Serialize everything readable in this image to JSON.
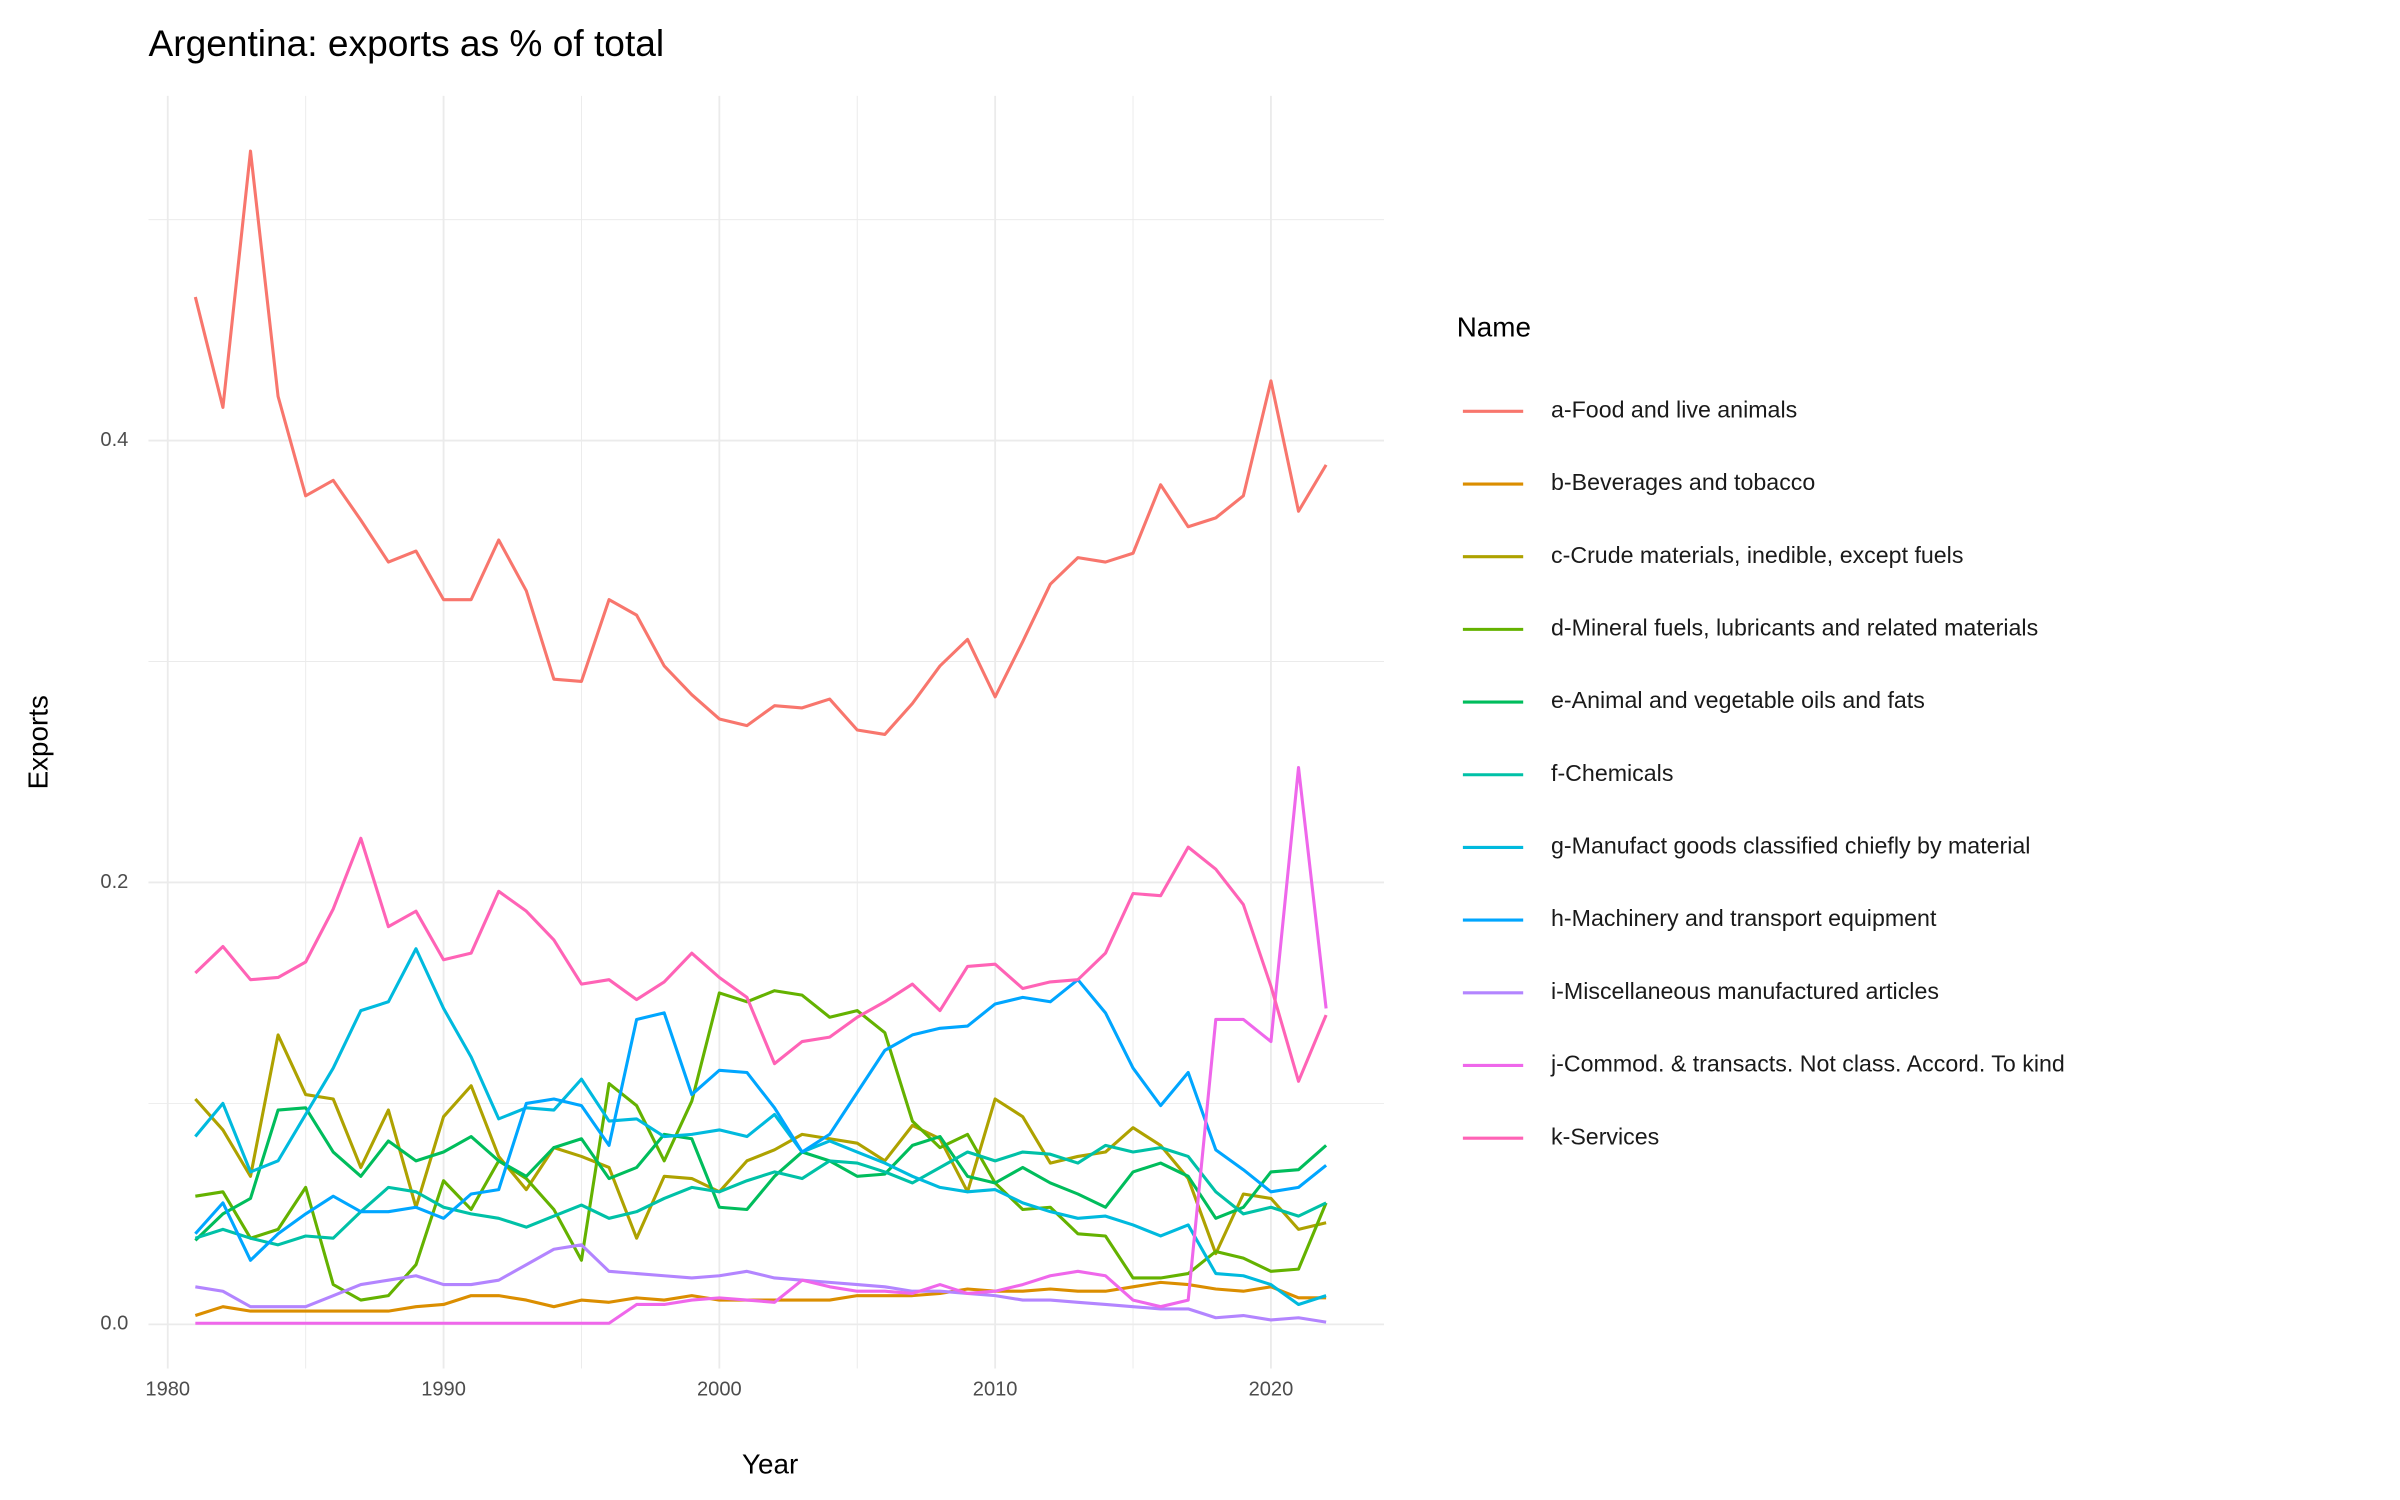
{
  "chart_data": {
    "type": "line",
    "title": "Argentina: exports as % of total",
    "x_label": "Year",
    "y_label": "Exports",
    "legend_title": "Name",
    "legend_position": "right",
    "grid": true,
    "xlim": [
      1979.3,
      2024.1
    ],
    "ylim": [
      -0.02,
      0.556
    ],
    "xticks": [
      1980,
      1990,
      2000,
      2010,
      2020
    ],
    "yticks": [
      {
        "value": 0,
        "label": "0.0"
      },
      {
        "value": 0.2,
        "label": "0.2"
      },
      {
        "value": 0.4,
        "label": "0.4"
      }
    ],
    "x_minor_grid": [
      1985,
      1995,
      2005,
      2015
    ],
    "y_minor_grid": [
      0.1,
      0.3,
      0.5
    ],
    "x": [
      1981,
      1982,
      1983,
      1984,
      1985,
      1986,
      1987,
      1988,
      1989,
      1990,
      1991,
      1992,
      1993,
      1994,
      1995,
      1996,
      1997,
      1998,
      1999,
      2000,
      2001,
      2002,
      2003,
      2004,
      2005,
      2006,
      2007,
      2008,
      2009,
      2010,
      2011,
      2012,
      2013,
      2014,
      2015,
      2016,
      2017,
      2018,
      2019,
      2020,
      2021,
      2022
    ],
    "series": [
      {
        "name": "a-Food and live animals",
        "color": "#F8766D",
        "values": [
          0.465,
          0.415,
          0.531,
          0.42,
          0.375,
          0.382,
          0.364,
          0.345,
          0.35,
          0.328,
          0.328,
          0.355,
          0.332,
          0.292,
          0.291,
          0.328,
          0.321,
          0.298,
          0.285,
          0.274,
          0.271,
          0.28,
          0.279,
          0.283,
          0.269,
          0.267,
          0.281,
          0.298,
          0.31,
          0.284,
          0.309,
          0.335,
          0.347,
          0.345,
          0.349,
          0.38,
          0.361,
          0.365,
          0.375,
          0.427,
          0.368,
          0.389
        ]
      },
      {
        "name": "b-Beverages and tobacco",
        "color": "#DB8E00",
        "values": [
          0.004,
          0.008,
          0.006,
          0.006,
          0.006,
          0.006,
          0.006,
          0.006,
          0.008,
          0.009,
          0.013,
          0.013,
          0.011,
          0.008,
          0.011,
          0.01,
          0.012,
          0.011,
          0.013,
          0.011,
          0.011,
          0.011,
          0.011,
          0.011,
          0.013,
          0.013,
          0.013,
          0.014,
          0.016,
          0.015,
          0.015,
          0.016,
          0.015,
          0.015,
          0.017,
          0.019,
          0.018,
          0.016,
          0.015,
          0.017,
          0.012,
          0.012
        ]
      },
      {
        "name": "c-Crude materials, inedible, except fuels",
        "color": "#AEA200",
        "values": [
          0.102,
          0.088,
          0.067,
          0.131,
          0.104,
          0.102,
          0.071,
          0.097,
          0.053,
          0.094,
          0.108,
          0.076,
          0.061,
          0.08,
          0.076,
          0.071,
          0.039,
          0.067,
          0.066,
          0.06,
          0.074,
          0.079,
          0.086,
          0.084,
          0.082,
          0.074,
          0.09,
          0.084,
          0.06,
          0.102,
          0.094,
          0.073,
          0.076,
          0.078,
          0.089,
          0.081,
          0.066,
          0.032,
          0.059,
          0.057,
          0.043,
          0.046
        ]
      },
      {
        "name": "d-Mineral fuels, lubricants and related materials",
        "color": "#64B200",
        "values": [
          0.058,
          0.06,
          0.039,
          0.043,
          0.062,
          0.018,
          0.011,
          0.013,
          0.027,
          0.065,
          0.052,
          0.074,
          0.066,
          0.052,
          0.029,
          0.109,
          0.099,
          0.074,
          0.101,
          0.15,
          0.146,
          0.151,
          0.149,
          0.139,
          0.142,
          0.132,
          0.092,
          0.08,
          0.086,
          0.064,
          0.052,
          0.053,
          0.041,
          0.04,
          0.021,
          0.021,
          0.023,
          0.033,
          0.03,
          0.024,
          0.025,
          0.055
        ]
      },
      {
        "name": "e-Animal and vegetable oils and fats",
        "color": "#00BD5C",
        "values": [
          0.038,
          0.05,
          0.057,
          0.097,
          0.098,
          0.078,
          0.067,
          0.083,
          0.074,
          0.078,
          0.085,
          0.074,
          0.067,
          0.08,
          0.084,
          0.066,
          0.071,
          0.086,
          0.084,
          0.053,
          0.052,
          0.067,
          0.078,
          0.074,
          0.067,
          0.068,
          0.081,
          0.085,
          0.067,
          0.064,
          0.071,
          0.064,
          0.059,
          0.053,
          0.069,
          0.073,
          0.067,
          0.048,
          0.053,
          0.069,
          0.07,
          0.081
        ]
      },
      {
        "name": "f-Chemicals",
        "color": "#00C1A7",
        "values": [
          0.039,
          0.043,
          0.039,
          0.036,
          0.04,
          0.039,
          0.051,
          0.062,
          0.06,
          0.053,
          0.05,
          0.048,
          0.044,
          0.049,
          0.054,
          0.048,
          0.051,
          0.057,
          0.062,
          0.06,
          0.065,
          0.069,
          0.066,
          0.074,
          0.073,
          0.069,
          0.064,
          0.071,
          0.078,
          0.074,
          0.078,
          0.077,
          0.073,
          0.081,
          0.078,
          0.08,
          0.076,
          0.06,
          0.05,
          0.053,
          0.049,
          0.055
        ]
      },
      {
        "name": "g-Manufact goods classified chiefly by material",
        "color": "#00BADE",
        "values": [
          0.085,
          0.1,
          0.069,
          0.074,
          0.095,
          0.116,
          0.142,
          0.146,
          0.17,
          0.143,
          0.121,
          0.093,
          0.098,
          0.097,
          0.111,
          0.092,
          0.093,
          0.085,
          0.086,
          0.088,
          0.085,
          0.095,
          0.078,
          0.083,
          0.078,
          0.073,
          0.067,
          0.062,
          0.06,
          0.061,
          0.055,
          0.051,
          0.048,
          0.049,
          0.045,
          0.04,
          0.045,
          0.023,
          0.022,
          0.018,
          0.009,
          0.013
        ]
      },
      {
        "name": "h-Machinery and transport equipment",
        "color": "#00A6FF",
        "values": [
          0.041,
          0.055,
          0.029,
          0.041,
          0.05,
          0.058,
          0.051,
          0.051,
          0.053,
          0.048,
          0.059,
          0.061,
          0.1,
          0.102,
          0.099,
          0.081,
          0.138,
          0.141,
          0.104,
          0.115,
          0.114,
          0.098,
          0.078,
          0.086,
          0.105,
          0.124,
          0.131,
          0.134,
          0.135,
          0.145,
          0.148,
          0.146,
          0.156,
          0.141,
          0.116,
          0.099,
          0.114,
          0.079,
          0.07,
          0.06,
          0.062,
          0.072
        ]
      },
      {
        "name": "i-Miscellaneous manufactured articles",
        "color": "#B385FF",
        "values": [
          0.017,
          0.015,
          0.008,
          0.008,
          0.008,
          0.013,
          0.018,
          0.02,
          0.022,
          0.018,
          0.018,
          0.02,
          0.027,
          0.034,
          0.036,
          0.024,
          0.023,
          0.022,
          0.021,
          0.022,
          0.024,
          0.021,
          0.02,
          0.019,
          0.018,
          0.017,
          0.015,
          0.015,
          0.014,
          0.013,
          0.011,
          0.011,
          0.01,
          0.009,
          0.008,
          0.007,
          0.007,
          0.003,
          0.004,
          0.002,
          0.003,
          0.001
        ]
      },
      {
        "name": "j-Commod. & transacts. Not class. Accord. To kind",
        "color": "#EF67EB",
        "values": [
          0.0005,
          0.0005,
          0.0005,
          0.0005,
          0.0005,
          0.0005,
          0.0005,
          0.0005,
          0.0005,
          0.0005,
          0.0005,
          0.0005,
          0.0005,
          0.0005,
          0.0005,
          0.0005,
          0.009,
          0.009,
          0.011,
          0.012,
          0.011,
          0.01,
          0.02,
          0.017,
          0.015,
          0.015,
          0.014,
          0.018,
          0.014,
          0.015,
          0.018,
          0.022,
          0.024,
          0.022,
          0.011,
          0.008,
          0.011,
          0.138,
          0.138,
          0.128,
          0.252,
          0.143
        ]
      },
      {
        "name": "k-Services",
        "color": "#FF63B6",
        "values": [
          0.159,
          0.171,
          0.156,
          0.157,
          0.164,
          0.188,
          0.22,
          0.18,
          0.187,
          0.165,
          0.168,
          0.196,
          0.187,
          0.174,
          0.154,
          0.156,
          0.147,
          0.155,
          0.168,
          0.157,
          0.148,
          0.118,
          0.128,
          0.13,
          0.139,
          0.146,
          0.154,
          0.142,
          0.162,
          0.163,
          0.152,
          0.155,
          0.156,
          0.168,
          0.195,
          0.194,
          0.216,
          0.206,
          0.19,
          0.153,
          0.11,
          0.14
        ]
      }
    ]
  }
}
